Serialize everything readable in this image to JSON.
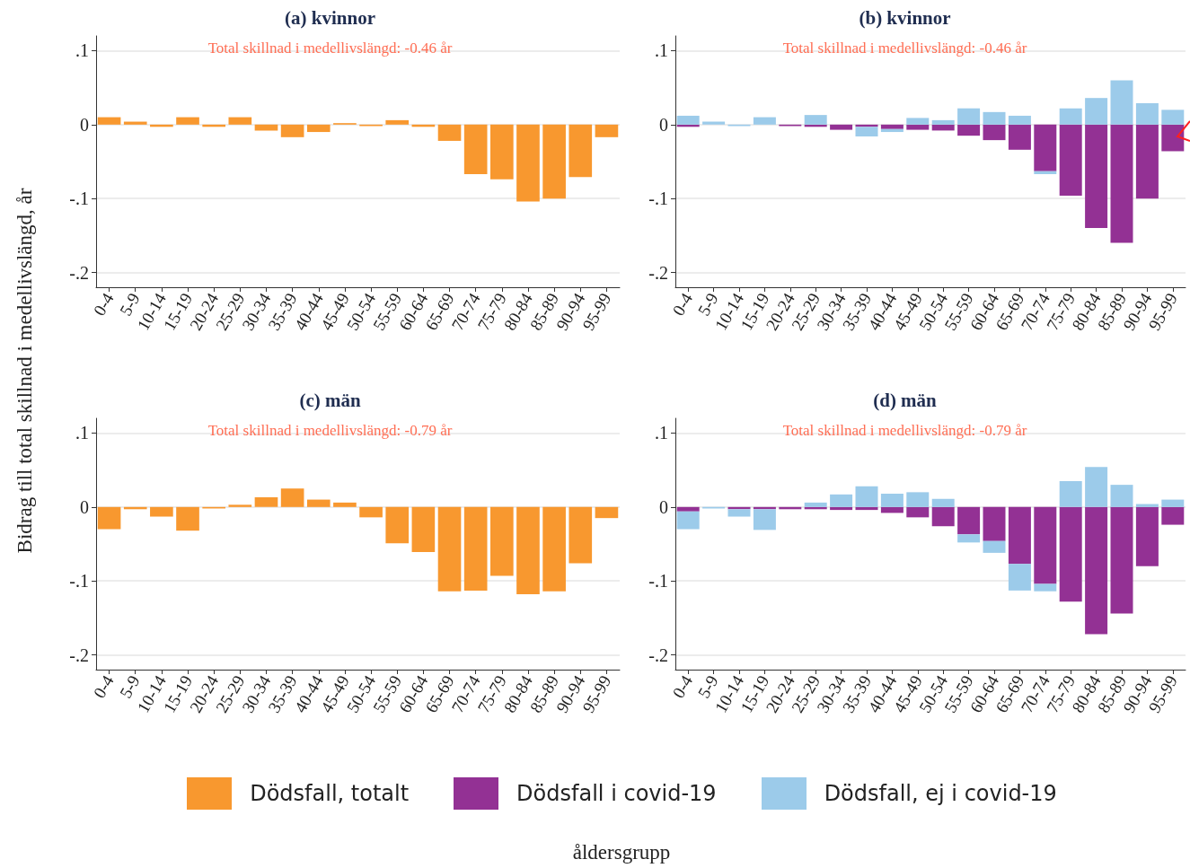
{
  "chart_data": [
    {
      "type": "bar",
      "title": "(a) kvinnor",
      "subtitle": "Total skillnad i medellivslängd: -0.46 år",
      "ylabel": "Bidrag till total skillnad i medellivslängd, år",
      "legend": "bottom",
      "grid": "y",
      "ylim": [
        -0.22,
        0.12
      ],
      "yticks": [
        {
          "value": 0.1,
          "label": ".1"
        },
        {
          "value": 0,
          "label": "0"
        },
        {
          "value": -0.1,
          "label": "-.1"
        },
        {
          "value": -0.2,
          "label": "-.2"
        }
      ],
      "categories": [
        "0-4",
        "5-9",
        "10-14",
        "15-19",
        "20-24",
        "25-29",
        "30-34",
        "35-39",
        "40-44",
        "45-49",
        "50-54",
        "55-59",
        "60-64",
        "65-69",
        "70-74",
        "75-79",
        "80-84",
        "85-89",
        "90-94",
        "95-99"
      ],
      "series": [
        {
          "name": "Dödsfall, totalt",
          "color": "#f8982f",
          "values": [
            0.01,
            0.004,
            -0.003,
            0.01,
            -0.003,
            0.01,
            -0.008,
            -0.017,
            -0.01,
            0.002,
            -0.002,
            0.006,
            -0.003,
            -0.022,
            -0.067,
            -0.074,
            -0.104,
            -0.1,
            -0.071,
            -0.017
          ]
        }
      ]
    },
    {
      "type": "bar",
      "title": "(b) kvinnor",
      "subtitle": "Total skillnad i medellivslängd: -0.46 år",
      "legend": "bottom",
      "stacked": true,
      "grid": "y",
      "ylim": [
        -0.22,
        0.12
      ],
      "yticks": [
        {
          "value": 0.1,
          "label": ".1"
        },
        {
          "value": 0,
          "label": "0"
        },
        {
          "value": -0.1,
          "label": "-.1"
        },
        {
          "value": -0.2,
          "label": "-.2"
        }
      ],
      "categories": [
        "0-4",
        "5-9",
        "10-14",
        "15-19",
        "20-24",
        "25-29",
        "30-34",
        "35-39",
        "40-44",
        "45-49",
        "50-54",
        "55-59",
        "60-64",
        "65-69",
        "70-74",
        "75-79",
        "80-84",
        "85-89",
        "90-94",
        "95-99"
      ],
      "series": [
        {
          "name": "Dödsfall i covid-19",
          "color": "#933194",
          "values": [
            -0.003,
            0,
            0,
            0,
            -0.002,
            -0.003,
            -0.007,
            -0.003,
            -0.006,
            -0.007,
            -0.008,
            -0.015,
            -0.021,
            -0.034,
            -0.063,
            -0.096,
            -0.14,
            -0.16,
            -0.1,
            -0.036
          ]
        },
        {
          "name": "Dödsfall, ej i covid-19",
          "color": "#9ccbea",
          "values": [
            0.012,
            0.004,
            -0.002,
            0.01,
            0,
            0.013,
            0,
            -0.013,
            -0.004,
            0.009,
            0.006,
            0.022,
            0.017,
            0.012,
            -0.004,
            0.022,
            0.036,
            0.06,
            0.029,
            0.02
          ]
        }
      ]
    },
    {
      "type": "bar",
      "title": "(c) män",
      "subtitle": "Total skillnad i medellivslängd: -0.79 år",
      "xlabel": "åldersgrupp",
      "grid": "y",
      "ylim": [
        -0.22,
        0.12
      ],
      "yticks": [
        {
          "value": 0.1,
          "label": ".1"
        },
        {
          "value": 0,
          "label": "0"
        },
        {
          "value": -0.1,
          "label": "-.1"
        },
        {
          "value": -0.2,
          "label": "-.2"
        }
      ],
      "categories": [
        "0-4",
        "5-9",
        "10-14",
        "15-19",
        "20-24",
        "25-29",
        "30-34",
        "35-39",
        "40-44",
        "45-49",
        "50-54",
        "55-59",
        "60-64",
        "65-69",
        "70-74",
        "75-79",
        "80-84",
        "85-89",
        "90-94",
        "95-99"
      ],
      "series": [
        {
          "color": "#f8982f",
          "values": [
            -0.03,
            -0.003,
            -0.013,
            -0.032,
            -0.002,
            0.003,
            0.013,
            0.025,
            0.01,
            0.006,
            -0.014,
            -0.049,
            -0.061,
            -0.114,
            -0.113,
            -0.093,
            -0.118,
            -0.114,
            -0.076,
            -0.015
          ]
        }
      ]
    },
    {
      "type": "bar",
      "title": "(d) män",
      "subtitle": "Total skillnad i medellivslängd: -0.79 år",
      "stacked": true,
      "grid": "y",
      "ylim": [
        -0.22,
        0.12
      ],
      "yticks": [
        {
          "value": 0.1,
          "label": ".1"
        },
        {
          "value": 0,
          "label": "0"
        },
        {
          "value": -0.1,
          "label": "-.1"
        },
        {
          "value": -0.2,
          "label": "-.2"
        }
      ],
      "categories": [
        "0-4",
        "5-9",
        "10-14",
        "15-19",
        "20-24",
        "25-29",
        "30-34",
        "35-39",
        "40-44",
        "45-49",
        "50-54",
        "55-59",
        "60-64",
        "65-69",
        "70-74",
        "75-79",
        "80-84",
        "85-89",
        "90-94",
        "95-99"
      ],
      "series": [
        {
          "color": "#933194",
          "values": [
            -0.006,
            0,
            -0.003,
            -0.003,
            -0.003,
            -0.003,
            -0.004,
            -0.004,
            -0.008,
            -0.014,
            -0.026,
            -0.037,
            -0.046,
            -0.077,
            -0.104,
            -0.128,
            -0.172,
            -0.144,
            -0.08,
            -0.024
          ]
        },
        {
          "color": "#9ccbea",
          "values": [
            -0.024,
            -0.002,
            -0.01,
            -0.028,
            0,
            0.006,
            0.017,
            0.028,
            0.018,
            0.02,
            0.011,
            -0.011,
            -0.016,
            -0.036,
            -0.01,
            0.035,
            0.054,
            0.03,
            0.004,
            0.01
          ]
        }
      ]
    }
  ]
}
